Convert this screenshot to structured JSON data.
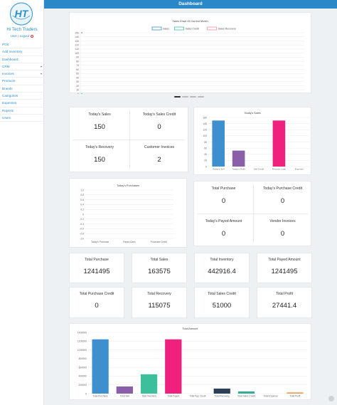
{
  "app": {
    "brand": "Hi Tech Traders",
    "logo_text": "HT",
    "user_label": "User",
    "logout_label": "Logout",
    "separator": "|"
  },
  "nav": [
    {
      "label": "POS",
      "has_submenu": false
    },
    {
      "label": "Add Inventory",
      "has_submenu": false
    },
    {
      "label": "Dashboard",
      "has_submenu": false
    },
    {
      "label": "CRM",
      "has_submenu": true
    },
    {
      "label": "Invoices",
      "has_submenu": true
    },
    {
      "label": "Products",
      "has_submenu": false
    },
    {
      "label": "Brands",
      "has_submenu": false
    },
    {
      "label": "Categories",
      "has_submenu": false
    },
    {
      "label": "Expenses",
      "has_submenu": false
    },
    {
      "label": "Reports",
      "has_submenu": false
    },
    {
      "label": "Users",
      "has_submenu": false
    }
  ],
  "header": {
    "title": "Dashboard"
  },
  "colors": {
    "topbar": "#2a88c9",
    "link": "#2a8fd0",
    "blue": "#3d8fce",
    "purple": "#8a5ea8",
    "teal": "#3dbf9b",
    "pink": "#f0207f",
    "navy": "#2b3f57",
    "orange": "#f29a55",
    "green_teal": "#3aa89a"
  },
  "slider": {
    "count": 4,
    "active": 0
  },
  "stats_top": [
    {
      "label": "Today's Sales",
      "value": "150"
    },
    {
      "label": "Today's Sales Credit",
      "value": "0"
    },
    {
      "label": "Today's Recovery",
      "value": "150"
    },
    {
      "label": "Customer Invoices",
      "value": "2"
    }
  ],
  "stats_mid": [
    {
      "label": "Total Purchase",
      "value": "0"
    },
    {
      "label": "Today's Purchase Credit",
      "value": "0"
    },
    {
      "label": "Today's Payed Amount",
      "value": "0"
    },
    {
      "label": "Vendor Invoices",
      "value": "0"
    }
  ],
  "stats_grid": [
    {
      "label": "Total Purchase",
      "value": "1241495"
    },
    {
      "label": "Total Sales",
      "value": "163575"
    },
    {
      "label": "Total Inventory",
      "value": "442916.4"
    },
    {
      "label": "Total Payed Amount",
      "value": "1241495"
    },
    {
      "label": "Total Purchase Credit",
      "value": "0"
    },
    {
      "label": "Total Recovery",
      "value": "115075"
    },
    {
      "label": "Total Sales Credit",
      "value": "51000"
    },
    {
      "label": "Total Profit",
      "value": "27441.4"
    }
  ],
  "chart_data": [
    {
      "type": "line",
      "title": "Sales Chart Of Current Month",
      "legend_position": "top",
      "series": [
        {
          "name": "Sales",
          "color": "#3d8fce",
          "values": [
            150
          ]
        },
        {
          "name": "Sales Credit",
          "color": "#3dbf9b",
          "values": [
            0
          ]
        },
        {
          "name": "Sales Recovery",
          "color": "#f08fa0",
          "values": [
            150
          ]
        }
      ],
      "x": [
        "3"
      ],
      "yticks": [
        "150",
        "140",
        "130",
        "120",
        "110",
        "100",
        "90",
        "80",
        "70",
        "60",
        "50",
        "40",
        "30",
        "20",
        "10",
        "0"
      ],
      "ylim": [
        0,
        150
      ],
      "grid": true
    },
    {
      "type": "bar",
      "title": "Today's Sales",
      "categories": [
        "Today's Sell",
        "Today's Profit",
        "Sell Credit",
        "Recover Loan",
        "Expense"
      ],
      "values": [
        150,
        52,
        0,
        150,
        0
      ],
      "colors": [
        "#3d8fce",
        "#8a5ea8",
        "#3dbf9b",
        "#f0207f",
        "#f29a55"
      ],
      "yticks": [
        "160",
        "140",
        "120",
        "100",
        "80",
        "60",
        "40",
        "20",
        "0"
      ],
      "ylim": [
        0,
        160
      ],
      "grid": true
    },
    {
      "type": "bar",
      "title": "Today's Purchases",
      "categories": [
        "Today's Purchase",
        "Payed Cash",
        "Purchase Credit"
      ],
      "values": [
        0,
        0,
        0
      ],
      "yticks": [
        "1.0",
        "0.8",
        "0.6",
        "0.4",
        "0.2",
        "0",
        "-0.2",
        "-0.4",
        "-0.6",
        "-0.8",
        "-1.0"
      ],
      "ylim": [
        -1,
        1
      ],
      "grid": true
    },
    {
      "type": "bar",
      "title": "Total Amount",
      "categories": [
        "Total Purchase",
        "Total Sell",
        "Total Inventory",
        "Total Payed",
        "Total Pay. Credit",
        "Total Recovery",
        "Total Sales Credit",
        "Total Expense",
        "Total Profit"
      ],
      "values": [
        1241495,
        163575,
        442916.4,
        1241495,
        0,
        115075,
        51000,
        0,
        27441.4
      ],
      "colors": [
        "#3d8fce",
        "#8a5ea8",
        "#3dbf9b",
        "#f0207f",
        "#f29a55",
        "#2b3f57",
        "#3aa89a",
        "#f29a55",
        "#f29a55"
      ],
      "yticks": [
        "1400000",
        "1200000",
        "1000000",
        "800000",
        "600000",
        "400000",
        "200000",
        "0"
      ],
      "ylim": [
        0,
        1400000
      ],
      "grid": true
    }
  ]
}
